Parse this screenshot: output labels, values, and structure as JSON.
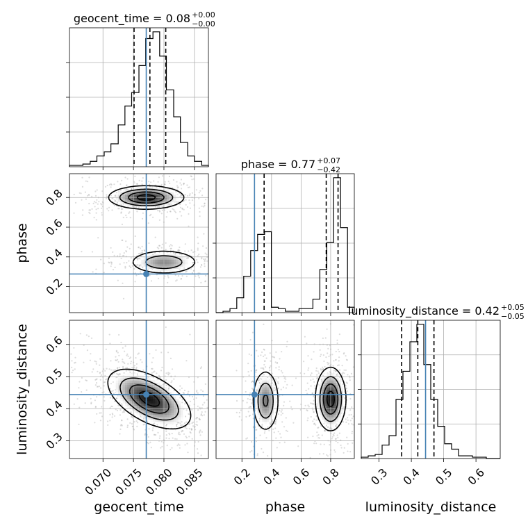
{
  "chart_data": {
    "type": "corner",
    "parameters": [
      {
        "name": "geocent_time",
        "label": "geocent_time",
        "title": "geocent_time = 0.08",
        "title_plus": "+0.00",
        "title_minus": "−0.00",
        "range": [
          0.0645,
          0.0873
        ],
        "ticks": [
          0.07,
          0.075,
          0.08,
          0.085
        ],
        "tick_labels": [
          "0.070",
          "0.075",
          "0.080",
          "0.085"
        ],
        "truth": 0.0771,
        "quantiles": [
          0.0751,
          0.0777,
          0.0803
        ],
        "hist": {
          "edges": [
            0.0645,
            0.0656,
            0.0667,
            0.0679,
            0.069,
            0.0702,
            0.0713,
            0.0725,
            0.0736,
            0.0747,
            0.0759,
            0.077,
            0.0782,
            0.0793,
            0.0804,
            0.0816,
            0.0827,
            0.0839,
            0.085,
            0.0862,
            0.0873
          ],
          "counts": [
            1,
            1,
            2,
            4,
            8,
            11,
            17,
            31,
            45,
            55,
            75,
            95,
            100,
            82,
            57,
            37,
            18,
            8,
            4,
            1
          ]
        }
      },
      {
        "name": "phase",
        "label": "phase",
        "title": "phase = 0.77",
        "title_plus": "+0.07",
        "title_minus": "−0.42",
        "range": [
          0.025,
          0.96
        ],
        "ticks": [
          0.2,
          0.4,
          0.6,
          0.8
        ],
        "tick_labels": [
          "0.2",
          "0.4",
          "0.6",
          "0.8"
        ],
        "truth": 0.285,
        "quantiles": [
          0.35,
          0.77,
          0.85
        ],
        "hist": {
          "edges": [
            0.025,
            0.072,
            0.119,
            0.165,
            0.212,
            0.259,
            0.306,
            0.353,
            0.399,
            0.446,
            0.493,
            0.54,
            0.586,
            0.633,
            0.68,
            0.727,
            0.774,
            0.82,
            0.867,
            0.914,
            0.96
          ],
          "counts": [
            0,
            1,
            3,
            11,
            27,
            46,
            58,
            60,
            4,
            3,
            1,
            1,
            3,
            3,
            10,
            32,
            52,
            100,
            63,
            4
          ]
        }
      },
      {
        "name": "luminosity_distance",
        "label": "luminosity_distance",
        "title": "luminosity_distance = 0.42",
        "title_plus": "+0.05",
        "title_minus": "−0.05",
        "range": [
          0.245,
          0.675
        ],
        "ticks": [
          0.3,
          0.4,
          0.5,
          0.6
        ],
        "tick_labels": [
          "0.3",
          "0.4",
          "0.5",
          "0.6"
        ],
        "truth": 0.444,
        "quantiles": [
          0.37,
          0.42,
          0.47
        ],
        "hist": {
          "edges": [
            0.245,
            0.2665,
            0.288,
            0.3095,
            0.331,
            0.3525,
            0.374,
            0.3955,
            0.417,
            0.4385,
            0.46,
            0.4815,
            0.503,
            0.5245,
            0.546,
            0.5675,
            0.589,
            0.6105,
            0.632,
            0.6535,
            0.675
          ],
          "counts": [
            1,
            2,
            3,
            10,
            17,
            44,
            65,
            87,
            100,
            70,
            44,
            24,
            11,
            7,
            2,
            2,
            1,
            1,
            0,
            0
          ]
        }
      }
    ],
    "pairs": [
      {
        "x": "geocent_time",
        "y": "phase",
        "modes": [
          {
            "center": [
              0.0771,
              0.8
            ],
            "spread": [
              0.003,
              0.038
            ],
            "weight": 0.62
          },
          {
            "center": [
              0.08,
              0.365
            ],
            "spread": [
              0.0028,
              0.04
            ],
            "weight": 0.38
          }
        ]
      },
      {
        "x": "geocent_time",
        "y": "luminosity_distance",
        "modes": [
          {
            "center": [
              0.0776,
              0.43
            ],
            "spread": [
              0.0033,
              0.045
            ],
            "weight": 1.0,
            "rho": -0.55
          }
        ]
      },
      {
        "x": "phase",
        "y": "luminosity_distance",
        "modes": [
          {
            "center": [
              0.8,
              0.43
            ],
            "spread": [
              0.05,
              0.048
            ],
            "weight": 0.6
          },
          {
            "center": [
              0.36,
              0.425
            ],
            "spread": [
              0.045,
              0.048
            ],
            "weight": 0.4
          }
        ]
      }
    ],
    "grid": true,
    "scatter": true
  }
}
